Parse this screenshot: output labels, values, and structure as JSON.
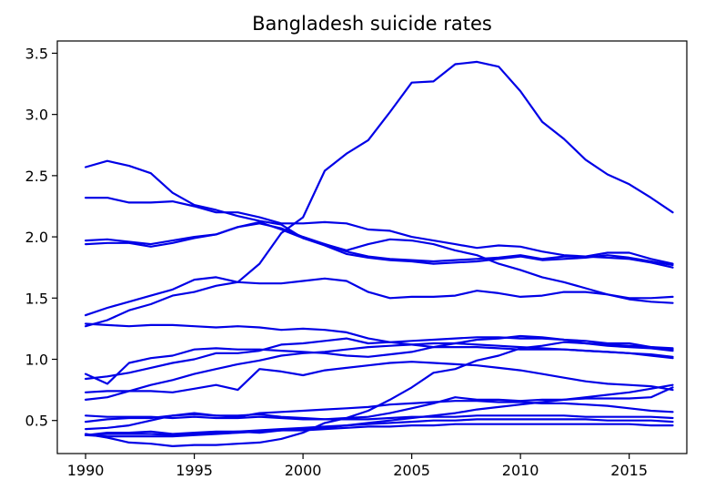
{
  "chart_data": {
    "type": "line",
    "title": "Bangladesh suicide rates",
    "xlabel": "",
    "ylabel": "",
    "xlim": [
      1988.7,
      2017.65
    ],
    "ylim": [
      0.23,
      3.6
    ],
    "x_ticks": [
      1990,
      1995,
      2000,
      2005,
      2010,
      2015
    ],
    "y_ticks": [
      0.5,
      1.0,
      1.5,
      2.0,
      2.5,
      3.0,
      3.5
    ],
    "y_tick_labels": [
      "0.5",
      "1.0",
      "1.5",
      "2.0",
      "2.5",
      "3.0",
      "3.5"
    ],
    "grid": false,
    "legend": "none",
    "line_color": "#0000e6",
    "x": [
      1990,
      1991,
      1992,
      1993,
      1994,
      1995,
      1996,
      1997,
      1998,
      1999,
      2000,
      2001,
      2002,
      2003,
      2004,
      2005,
      2006,
      2007,
      2008,
      2009,
      2010,
      2011,
      2012,
      2013,
      2014,
      2015,
      2016,
      2017
    ],
    "series": [
      {
        "values": [
          0.39,
          0.36,
          0.32,
          0.31,
          0.29,
          0.3,
          0.3,
          0.31,
          0.32,
          0.35,
          0.4,
          0.48,
          0.52,
          0.58,
          0.67,
          0.77,
          0.89,
          0.92,
          0.99,
          1.03,
          1.09,
          1.11,
          1.14,
          1.13,
          1.12,
          1.11,
          1.1,
          1.09
        ]
      },
      {
        "values": [
          1.94,
          1.95,
          1.95,
          1.92,
          1.95,
          1.99,
          2.02,
          2.08,
          2.12,
          2.06,
          1.99,
          1.93,
          1.86,
          1.83,
          1.81,
          1.8,
          1.78,
          1.79,
          1.8,
          1.82,
          1.84,
          1.81,
          1.82,
          1.83,
          1.85,
          1.83,
          1.8,
          1.77
        ]
      },
      {
        "values": [
          1.97,
          1.98,
          1.96,
          1.94,
          1.97,
          2.0,
          2.02,
          2.08,
          2.11,
          2.07,
          2.0,
          1.94,
          1.88,
          1.84,
          1.82,
          1.81,
          1.8,
          1.81,
          1.82,
          1.83,
          1.85,
          1.82,
          1.84,
          1.84,
          1.87,
          1.87,
          1.82,
          1.78
        ]
      },
      {
        "values": [
          2.32,
          2.32,
          2.28,
          2.28,
          2.29,
          2.25,
          2.2,
          2.2,
          2.16,
          2.11,
          2.11,
          2.12,
          2.11,
          2.06,
          2.05,
          2.0,
          1.97,
          1.94,
          1.91,
          1.93,
          1.92,
          1.88,
          1.85,
          1.84,
          1.83,
          1.82,
          1.79,
          1.75
        ]
      },
      {
        "values": [
          2.57,
          2.62,
          2.58,
          2.52,
          2.36,
          2.26,
          2.22,
          2.17,
          2.13,
          2.1,
          1.99,
          1.94,
          1.89,
          1.94,
          1.98,
          1.97,
          1.94,
          1.89,
          1.85,
          1.78,
          1.73,
          1.67,
          1.63,
          1.58,
          1.53,
          1.49,
          1.47,
          1.46
        ]
      },
      {
        "values": [
          1.36,
          1.42,
          1.47,
          1.52,
          1.57,
          1.65,
          1.67,
          1.63,
          1.78,
          2.03,
          2.16,
          2.54,
          2.68,
          2.79,
          3.02,
          3.26,
          3.27,
          3.41,
          3.43,
          3.39,
          3.19,
          2.94,
          2.8,
          2.63,
          2.51,
          2.43,
          2.32,
          2.2
        ]
      },
      {
        "values": [
          1.27,
          1.32,
          1.4,
          1.45,
          1.52,
          1.55,
          1.6,
          1.63,
          1.62,
          1.62,
          1.64,
          1.66,
          1.64,
          1.55,
          1.5,
          1.51,
          1.51,
          1.52,
          1.56,
          1.54,
          1.51,
          1.52,
          1.55,
          1.55,
          1.53,
          1.5,
          1.5,
          1.51
        ]
      },
      {
        "values": [
          1.29,
          1.28,
          1.27,
          1.28,
          1.28,
          1.27,
          1.26,
          1.27,
          1.26,
          1.24,
          1.25,
          1.24,
          1.22,
          1.17,
          1.14,
          1.12,
          1.1,
          1.1,
          1.1,
          1.09,
          1.08,
          1.08,
          1.08,
          1.07,
          1.06,
          1.05,
          1.04,
          1.02
        ]
      },
      {
        "values": [
          0.88,
          0.8,
          0.97,
          1.01,
          1.03,
          1.08,
          1.09,
          1.08,
          1.08,
          1.07,
          1.06,
          1.05,
          1.03,
          1.02,
          1.04,
          1.06,
          1.1,
          1.13,
          1.16,
          1.17,
          1.19,
          1.18,
          1.16,
          1.15,
          1.13,
          1.13,
          1.1,
          1.08
        ]
      },
      {
        "values": [
          0.84,
          0.86,
          0.89,
          0.93,
          0.97,
          1.0,
          1.05,
          1.05,
          1.07,
          1.12,
          1.13,
          1.15,
          1.17,
          1.13,
          1.14,
          1.15,
          1.16,
          1.17,
          1.18,
          1.18,
          1.17,
          1.17,
          1.16,
          1.13,
          1.11,
          1.1,
          1.09,
          1.07
        ]
      },
      {
        "values": [
          0.73,
          0.74,
          0.74,
          0.74,
          0.73,
          0.76,
          0.79,
          0.75,
          0.92,
          0.9,
          0.87,
          0.91,
          0.93,
          0.95,
          0.97,
          0.98,
          0.97,
          0.96,
          0.95,
          0.93,
          0.91,
          0.88,
          0.85,
          0.82,
          0.8,
          0.79,
          0.78,
          0.75
        ]
      },
      {
        "values": [
          0.67,
          0.69,
          0.74,
          0.79,
          0.83,
          0.88,
          0.92,
          0.96,
          0.99,
          1.03,
          1.05,
          1.06,
          1.08,
          1.1,
          1.11,
          1.12,
          1.13,
          1.13,
          1.12,
          1.11,
          1.1,
          1.09,
          1.08,
          1.07,
          1.06,
          1.05,
          1.03,
          1.01
        ]
      },
      {
        "values": [
          0.54,
          0.53,
          0.53,
          0.53,
          0.52,
          0.53,
          0.52,
          0.52,
          0.53,
          0.52,
          0.51,
          0.51,
          0.52,
          0.53,
          0.56,
          0.6,
          0.64,
          0.69,
          0.67,
          0.67,
          0.66,
          0.67,
          0.67,
          0.68,
          0.68,
          0.68,
          0.69,
          0.77
        ]
      },
      {
        "values": [
          0.49,
          0.51,
          0.52,
          0.52,
          0.54,
          0.56,
          0.54,
          0.53,
          0.56,
          0.57,
          0.58,
          0.59,
          0.6,
          0.61,
          0.63,
          0.64,
          0.65,
          0.66,
          0.66,
          0.65,
          0.65,
          0.64,
          0.64,
          0.63,
          0.62,
          0.6,
          0.58,
          0.57
        ]
      },
      {
        "values": [
          0.43,
          0.44,
          0.46,
          0.5,
          0.54,
          0.55,
          0.54,
          0.54,
          0.55,
          0.53,
          0.52,
          0.51,
          0.51,
          0.51,
          0.52,
          0.53,
          0.53,
          0.53,
          0.54,
          0.54,
          0.54,
          0.54,
          0.54,
          0.53,
          0.53,
          0.53,
          0.53,
          0.52
        ]
      },
      {
        "values": [
          0.38,
          0.4,
          0.4,
          0.41,
          0.39,
          0.4,
          0.41,
          0.41,
          0.4,
          0.42,
          0.43,
          0.44,
          0.46,
          0.48,
          0.5,
          0.52,
          0.54,
          0.56,
          0.59,
          0.61,
          0.63,
          0.65,
          0.67,
          0.69,
          0.71,
          0.73,
          0.76,
          0.79
        ]
      },
      {
        "values": [
          0.38,
          0.39,
          0.39,
          0.39,
          0.38,
          0.39,
          0.4,
          0.41,
          0.42,
          0.43,
          0.44,
          0.45,
          0.46,
          0.47,
          0.48,
          0.49,
          0.5,
          0.5,
          0.51,
          0.51,
          0.51,
          0.51,
          0.51,
          0.51,
          0.5,
          0.5,
          0.5,
          0.49
        ]
      },
      {
        "values": [
          0.38,
          0.37,
          0.37,
          0.37,
          0.37,
          0.38,
          0.39,
          0.4,
          0.41,
          0.42,
          0.42,
          0.43,
          0.44,
          0.45,
          0.45,
          0.46,
          0.46,
          0.47,
          0.47,
          0.47,
          0.47,
          0.47,
          0.47,
          0.47,
          0.47,
          0.47,
          0.46,
          0.46
        ]
      }
    ]
  }
}
